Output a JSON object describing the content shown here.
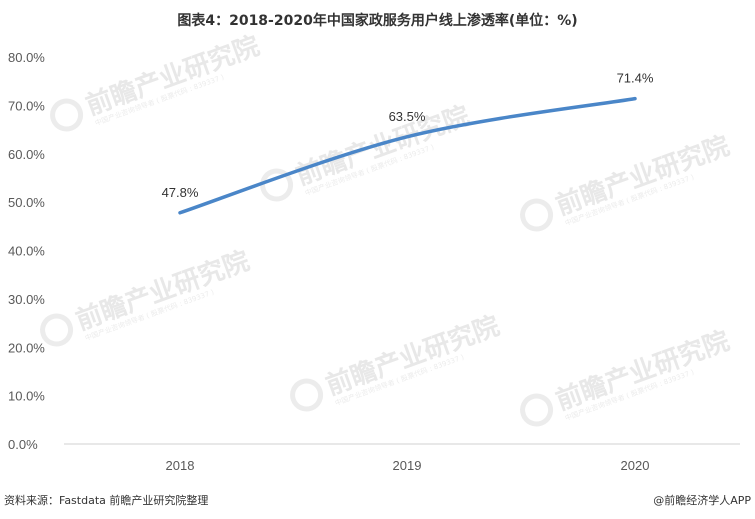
{
  "title": "图表4：2018-2020年中国家政服务用户线上渗透率(单位：%)",
  "source": "资料来源：Fastdata 前瞻产业研究院整理",
  "credit": "@前瞻经济学人APP",
  "watermark": {
    "main": "前瞻产业研究院",
    "sub": "中国产业咨询领导者 ( 股票代码 : 839337 )"
  },
  "colors": {
    "line": "#4a86c8",
    "grid": "#e0e0e0",
    "axis": "#d0d0d0"
  },
  "chart_data": {
    "type": "line",
    "categories": [
      "2018",
      "2019",
      "2020"
    ],
    "series": [
      {
        "values": [
          47.8,
          63.5,
          71.4
        ],
        "labels": [
          "47.8%",
          "63.5%",
          "71.4%"
        ]
      }
    ],
    "yticks": [
      0,
      10,
      20,
      30,
      40,
      50,
      60,
      70,
      80
    ],
    "ytick_labels": [
      "0.0%",
      "10.0%",
      "20.0%",
      "30.0%",
      "40.0%",
      "50.0%",
      "60.0%",
      "70.0%",
      "80.0%"
    ],
    "ylim": [
      0,
      80
    ],
    "grid": false,
    "smooth": true
  }
}
